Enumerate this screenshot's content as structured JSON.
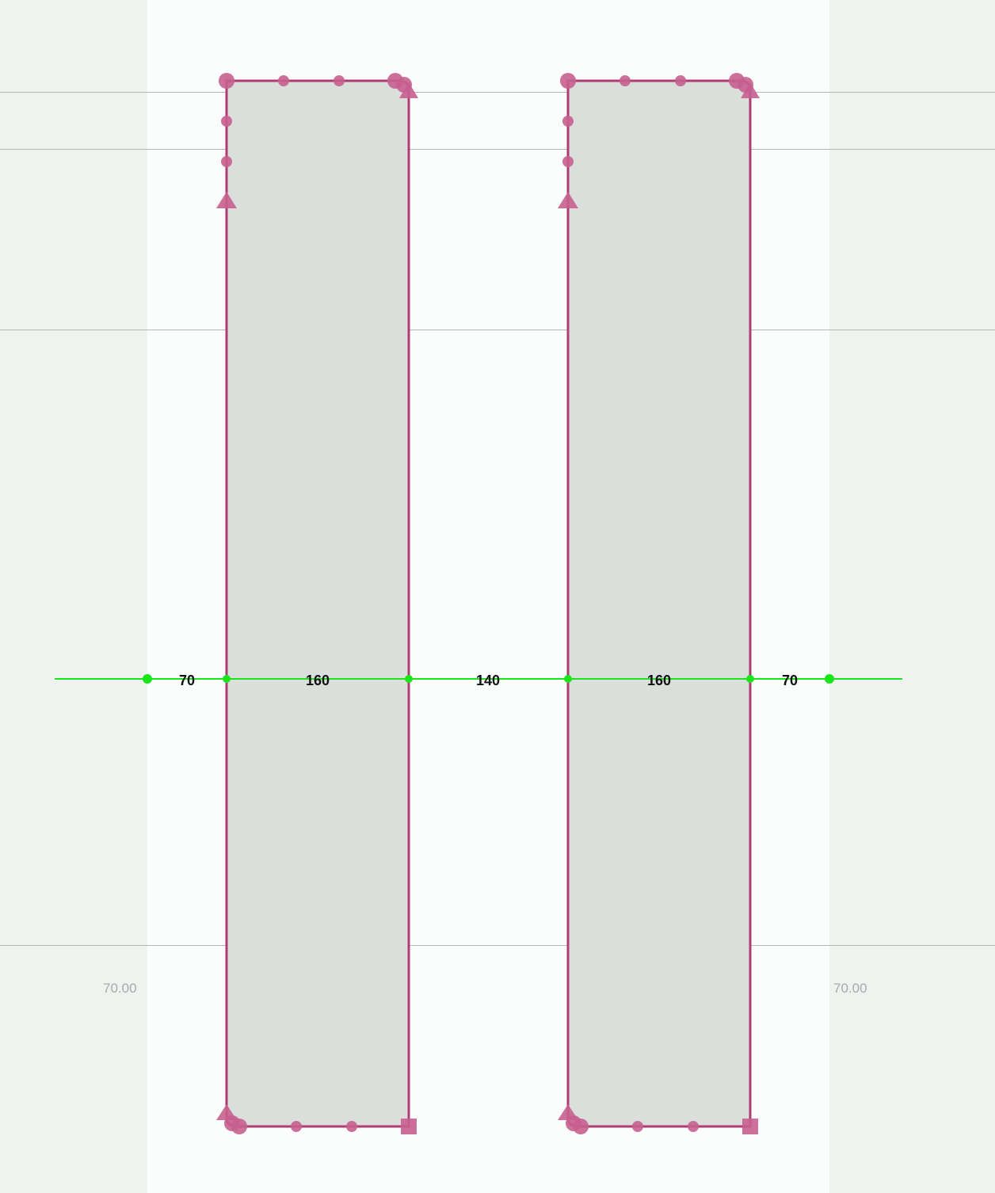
{
  "canvas": {
    "colors": {
      "pasteboard": "#eff2ef",
      "page": "#fafdfb",
      "shape_fill": "#dbdfdc",
      "selection_path": "#b03c73",
      "handle": "#c65f8f",
      "measure_line": "#19e619"
    },
    "margins": {
      "left_label": "70.00",
      "right_label": "70.00"
    },
    "measurements": [
      "70",
      "160",
      "140",
      "160",
      "70"
    ],
    "handle_icons": [
      "circle-handle-icon",
      "triangle-handle-icon",
      "square-handle-icon"
    ]
  }
}
